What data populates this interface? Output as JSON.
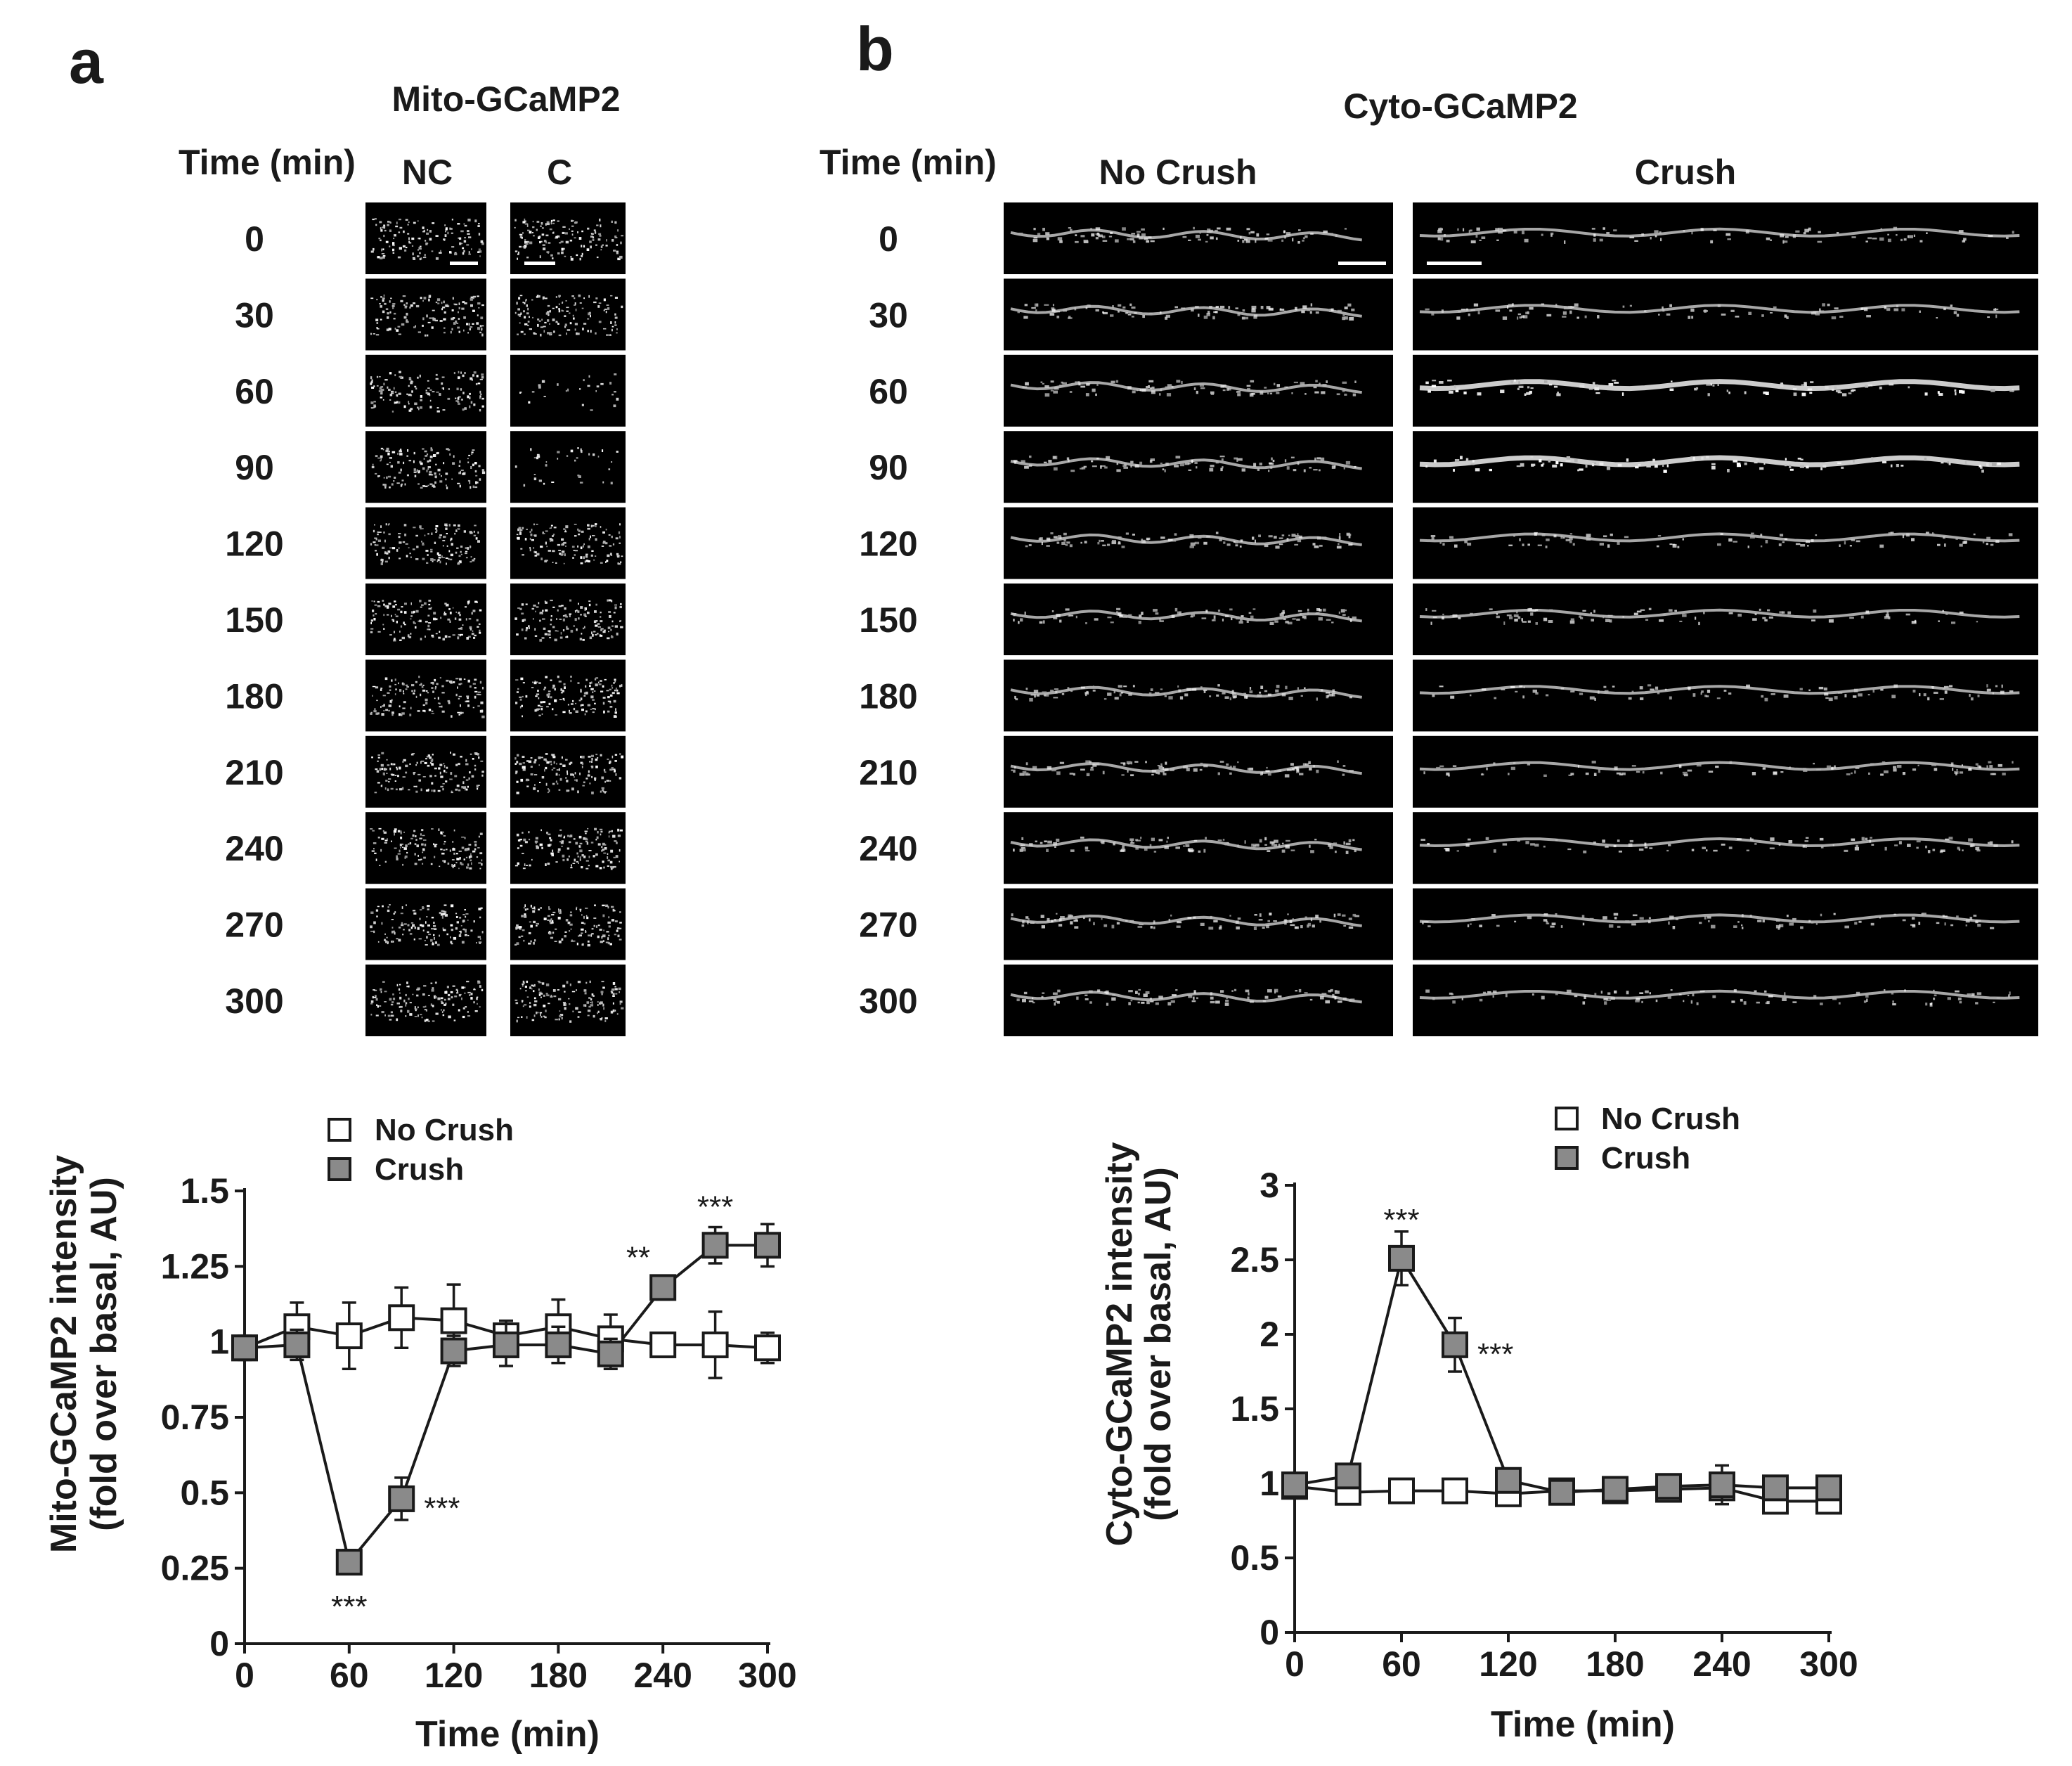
{
  "panel_a": {
    "letter": "a",
    "title": "Mito-GCaMP2",
    "time_header": "Time (min)",
    "col_nc": "NC",
    "col_c": "C",
    "times": [
      "0",
      "30",
      "60",
      "90",
      "120",
      "150",
      "180",
      "210",
      "240",
      "270",
      "300"
    ]
  },
  "panel_b": {
    "letter": "b",
    "title": "Cyto-GCaMP2",
    "time_header": "Time (min)",
    "col_nc": "No Crush",
    "col_c": "Crush",
    "times": [
      "0",
      "30",
      "60",
      "90",
      "120",
      "150",
      "180",
      "210",
      "240",
      "270",
      "300"
    ]
  },
  "colors": {
    "no_crush_fill": "#ffffff",
    "crush_fill": "#8a8a8a",
    "stroke": "#1a1a1a",
    "micrograph_bg": "#000000"
  },
  "chart_data": [
    {
      "id": "mito",
      "type": "line",
      "xlabel": "Time (min)",
      "ylabel": "Mito-GCaMP2 intensity",
      "ylabel2": "(fold over basal, AU)",
      "xlim": [
        0,
        300
      ],
      "ylim": [
        0,
        1.5
      ],
      "xticks": [
        0,
        60,
        120,
        180,
        240,
        300
      ],
      "yticks": [
        0,
        0.25,
        0.5,
        0.75,
        1,
        1.25,
        1.5
      ],
      "ytick_labels": [
        "0",
        "0.25",
        "0.5",
        "0.75",
        "1",
        "1.25",
        "1.5"
      ],
      "legend": [
        "No Crush",
        "Crush"
      ],
      "x": [
        0,
        30,
        60,
        90,
        120,
        150,
        180,
        210,
        240,
        270,
        300
      ],
      "series": [
        {
          "name": "No Crush",
          "values": [
            0.98,
            1.05,
            1.02,
            1.08,
            1.07,
            1.02,
            1.05,
            1.01,
            0.99,
            0.99,
            0.98
          ],
          "errors": [
            0.04,
            0.08,
            0.11,
            0.1,
            0.12,
            0.05,
            0.09,
            0.08,
            0.03,
            0.11,
            0.05
          ]
        },
        {
          "name": "Crush",
          "values": [
            0.98,
            0.99,
            0.27,
            0.48,
            0.97,
            0.99,
            0.99,
            0.96,
            1.18,
            1.32,
            1.32
          ],
          "errors": [
            0.04,
            0.05,
            0.04,
            0.07,
            0.05,
            0.07,
            0.06,
            0.05,
            0.04,
            0.06,
            0.07
          ]
        }
      ],
      "annotations": [
        {
          "x": 60,
          "y": 0.27,
          "text": "***",
          "pos": "below"
        },
        {
          "x": 90,
          "y": 0.48,
          "text": "***",
          "pos": "right"
        },
        {
          "x": 240,
          "y": 1.18,
          "text": "**",
          "pos": "upper-left"
        },
        {
          "x": 270,
          "y": 1.32,
          "text": "***",
          "pos": "above"
        }
      ]
    },
    {
      "id": "cyto",
      "type": "line",
      "xlabel": "Time (min)",
      "ylabel": "Cyto-GCaMP2 intensity",
      "ylabel2": "(fold over basal, AU)",
      "xlim": [
        0,
        300
      ],
      "ylim": [
        0,
        3
      ],
      "xticks": [
        0,
        60,
        120,
        180,
        240,
        300
      ],
      "yticks": [
        0,
        0.5,
        1,
        1.5,
        2,
        2.5,
        3
      ],
      "ytick_labels": [
        "0",
        "0.5",
        "1",
        "1.5",
        "2",
        "2.5",
        "3"
      ],
      "legend": [
        "No Crush",
        "Crush"
      ],
      "x": [
        0,
        30,
        60,
        90,
        120,
        150,
        180,
        210,
        240,
        270,
        300
      ],
      "series": [
        {
          "name": "No Crush",
          "values": [
            0.98,
            0.94,
            0.95,
            0.95,
            0.93,
            0.95,
            0.95,
            0.96,
            0.97,
            0.88,
            0.88
          ],
          "errors": [
            0.04,
            0.03,
            0.03,
            0.03,
            0.03,
            0.03,
            0.04,
            0.05,
            0.06,
            0.04,
            0.04
          ]
        },
        {
          "name": "Crush",
          "values": [
            0.99,
            1.05,
            2.51,
            1.93,
            1.02,
            0.94,
            0.96,
            0.98,
            0.99,
            0.97,
            0.97
          ],
          "errors": [
            0.04,
            0.05,
            0.18,
            0.18,
            0.05,
            0.04,
            0.05,
            0.07,
            0.13,
            0.05,
            0.05
          ]
        }
      ],
      "annotations": [
        {
          "x": 60,
          "y": 2.51,
          "text": "***",
          "pos": "above"
        },
        {
          "x": 90,
          "y": 1.93,
          "text": "***",
          "pos": "right"
        }
      ]
    }
  ]
}
